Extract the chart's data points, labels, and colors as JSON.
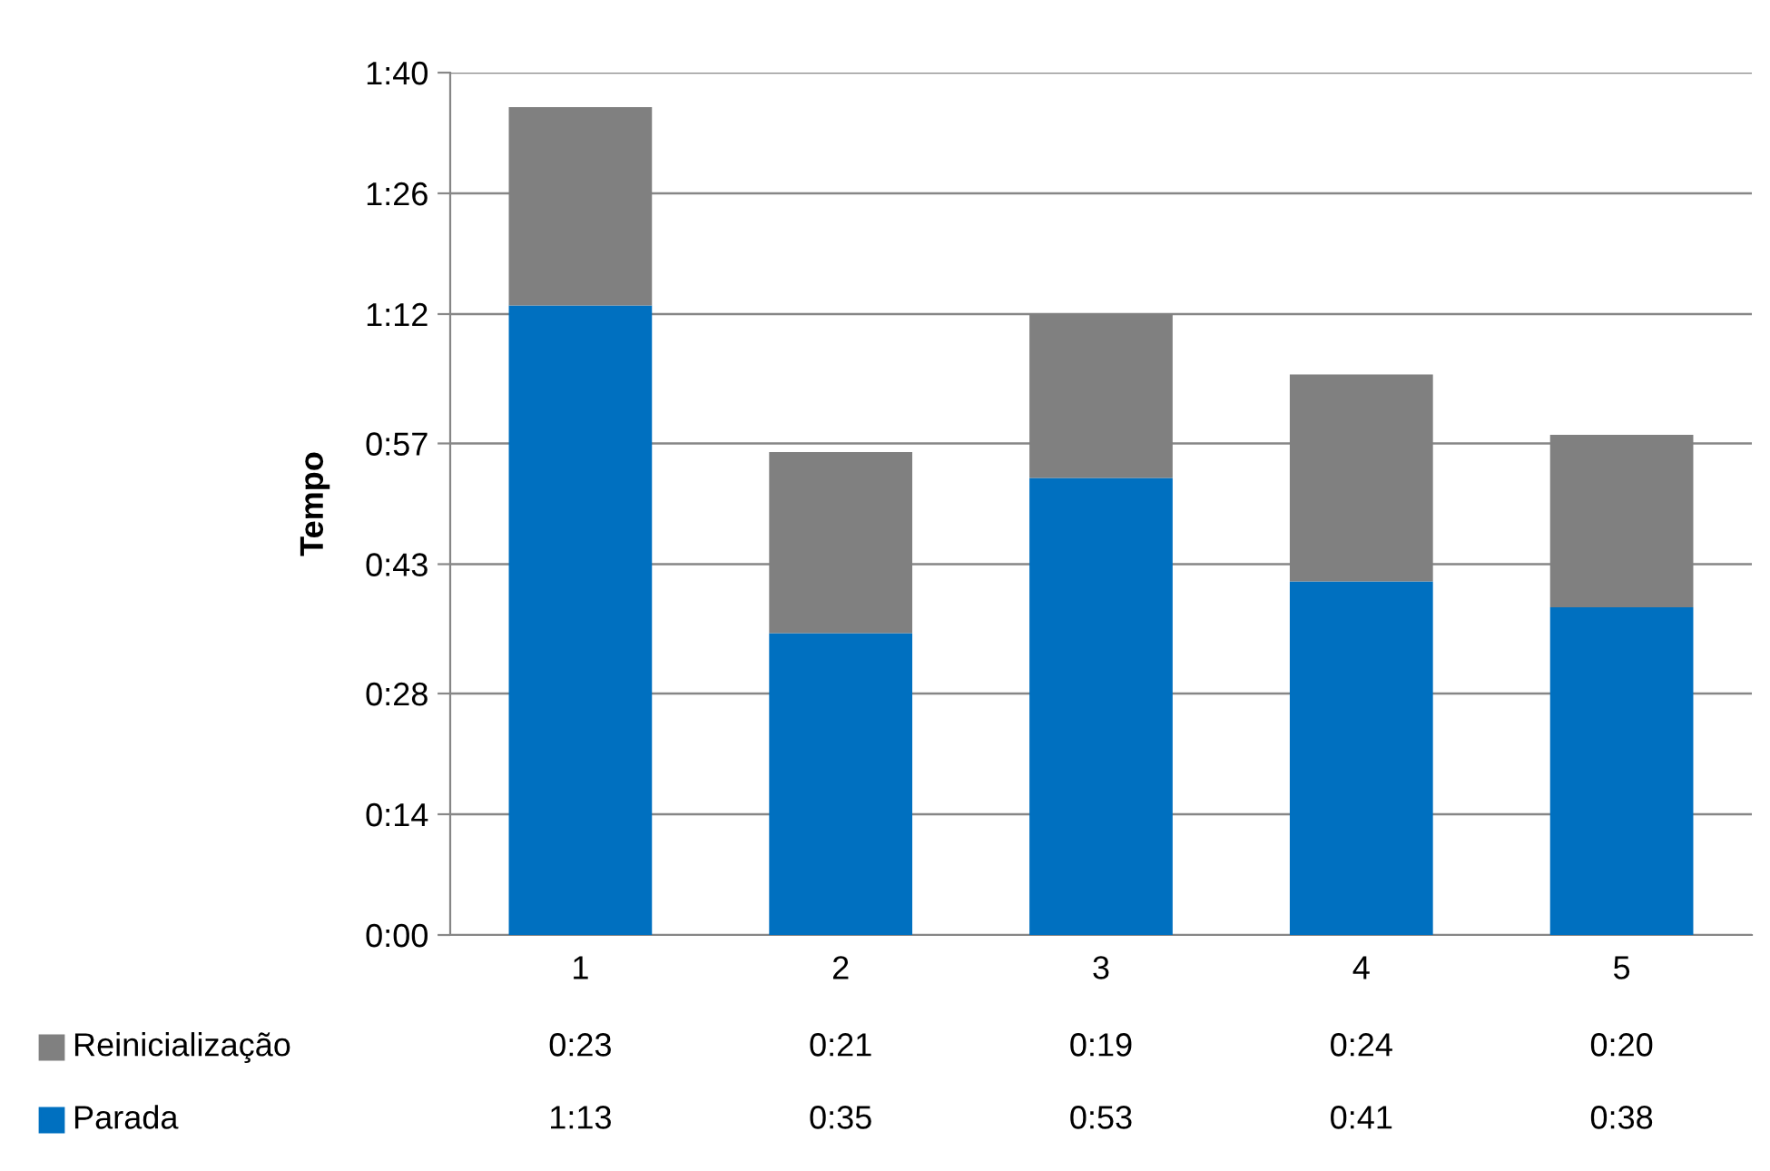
{
  "chart_data": {
    "type": "bar",
    "stacked": true,
    "ylabel": "Tempo",
    "categories": [
      "1",
      "2",
      "3",
      "4",
      "5"
    ],
    "series": [
      {
        "name": "Parada",
        "color": "#0070c0",
        "values": [
          73,
          35,
          53,
          41,
          38
        ],
        "value_labels": [
          "1:13",
          "0:35",
          "0:53",
          "0:41",
          "0:38"
        ]
      },
      {
        "name": "Reinicialização",
        "color": "#808080",
        "values": [
          23,
          21,
          19,
          24,
          20
        ],
        "value_labels": [
          "0:23",
          "0:21",
          "0:19",
          "0:24",
          "0:20"
        ]
      }
    ],
    "ylim": [
      0,
      100
    ],
    "yticks": [
      {
        "value": 0,
        "label": "0:00"
      },
      {
        "value": 14,
        "label": "0:14"
      },
      {
        "value": 28,
        "label": "0:28"
      },
      {
        "value": 43,
        "label": "0:43"
      },
      {
        "value": 57,
        "label": "0:57"
      },
      {
        "value": 72,
        "label": "1:12"
      },
      {
        "value": 86,
        "label": "1:26"
      },
      {
        "value": 100,
        "label": "1:40"
      }
    ],
    "grid": "y",
    "legend": "bottom"
  }
}
